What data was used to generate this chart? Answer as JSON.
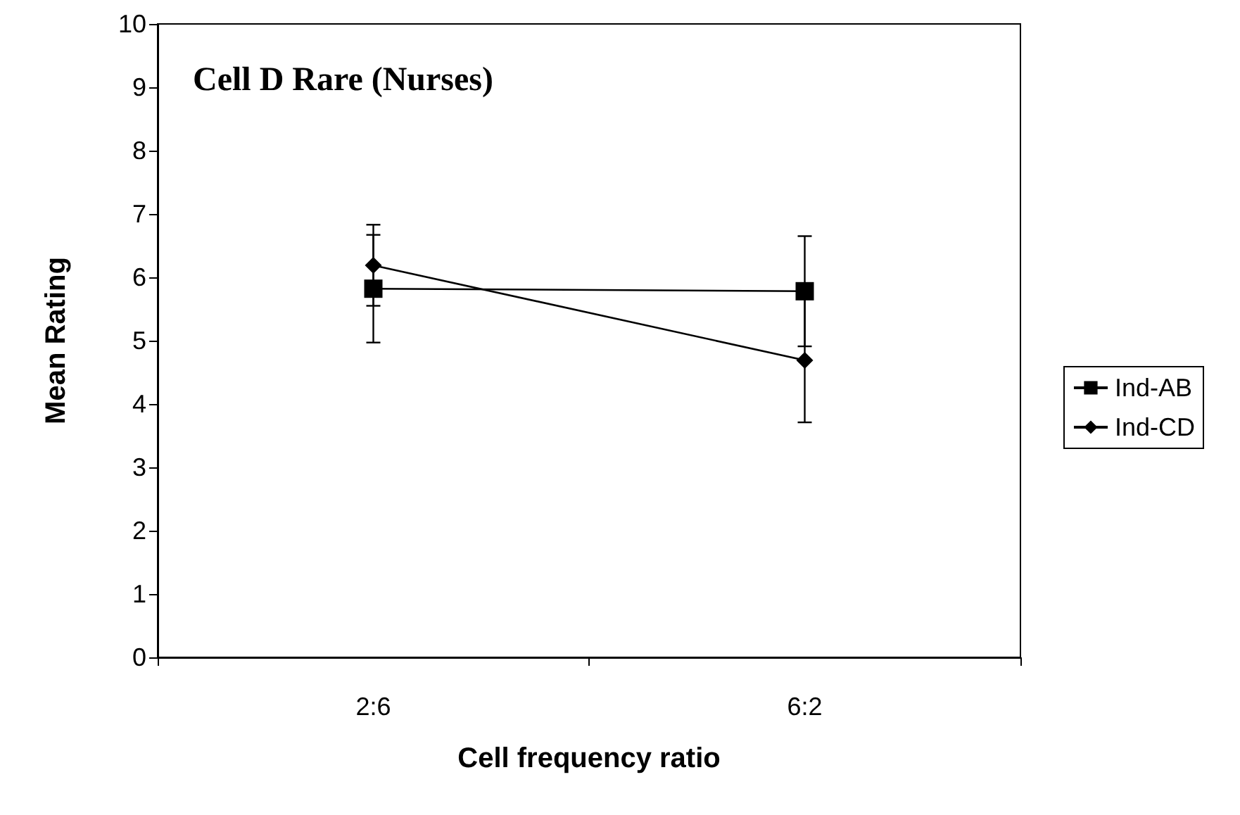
{
  "chart_data": {
    "type": "line",
    "title": "Cell D Rare (Nurses)",
    "xlabel": "Cell frequency ratio",
    "ylabel": "Mean Rating",
    "categories": [
      "2:6",
      "6:2"
    ],
    "series": [
      {
        "name": "Ind-AB",
        "color": "#000000",
        "marker": "square",
        "values": [
          5.82,
          5.78
        ],
        "errors": [
          0.85,
          0.87
        ]
      },
      {
        "name": "Ind-CD",
        "color": "#000000",
        "marker": "diamond",
        "values": [
          6.19,
          4.69
        ],
        "errors": [
          0.64,
          0.98
        ]
      }
    ],
    "ylim": [
      0,
      10
    ],
    "yticks": [
      0,
      1,
      2,
      3,
      4,
      5,
      6,
      7,
      8,
      9,
      10
    ],
    "grid": false,
    "legend": "right"
  }
}
